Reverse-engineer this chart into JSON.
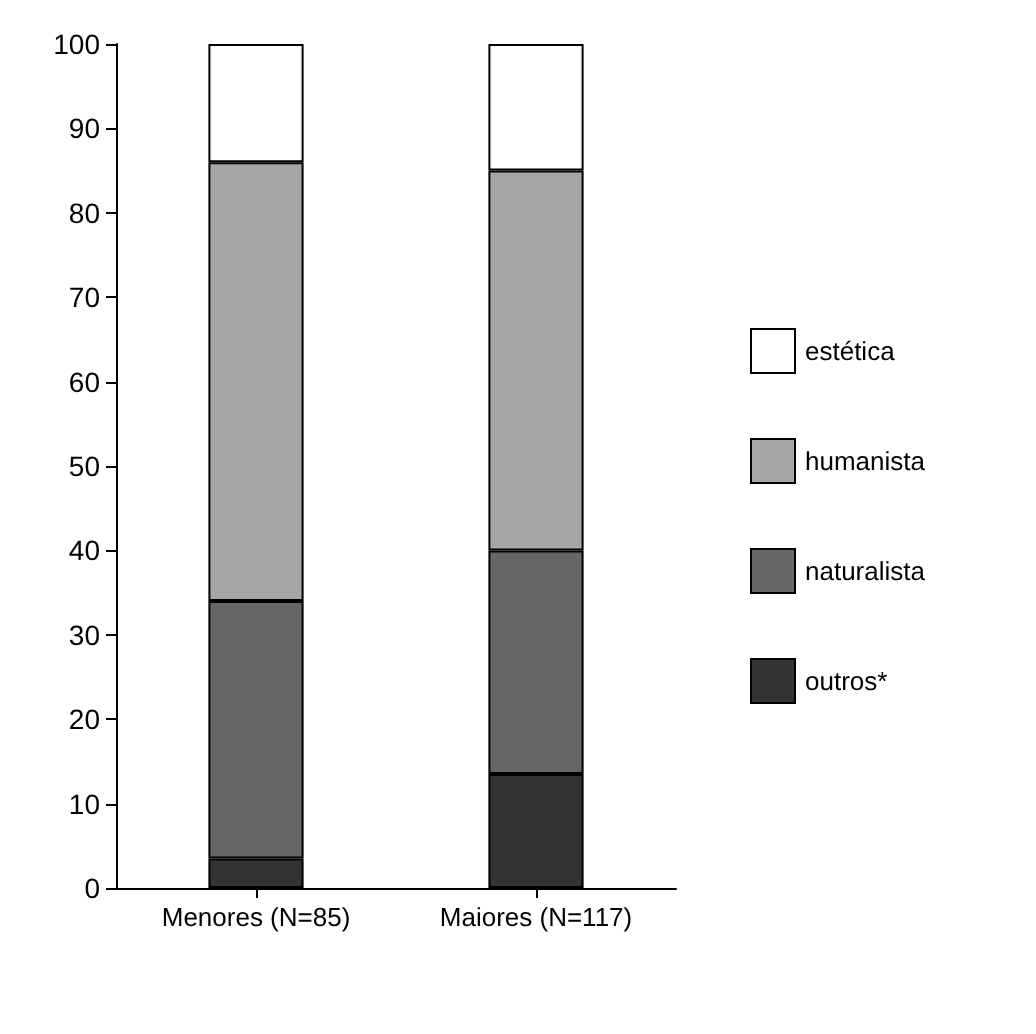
{
  "chart_data": {
    "type": "bar",
    "stacked": true,
    "categories": [
      "Menores (N=85)",
      "Maiores (N=117)"
    ],
    "series": [
      {
        "name": "outros*",
        "color": "#333333",
        "values": [
          3.5,
          13.5
        ]
      },
      {
        "name": "naturalista",
        "color": "#666666",
        "values": [
          30.5,
          26.5
        ]
      },
      {
        "name": "humanista",
        "color": "#a6a6a6",
        "values": [
          52,
          45
        ]
      },
      {
        "name": "estética",
        "color": "#ffffff",
        "values": [
          14,
          15
        ]
      }
    ],
    "ylim": [
      0,
      100
    ],
    "yticks": [
      0,
      10,
      20,
      30,
      40,
      50,
      60,
      70,
      80,
      90,
      100
    ],
    "grid": false,
    "legend": "right"
  }
}
